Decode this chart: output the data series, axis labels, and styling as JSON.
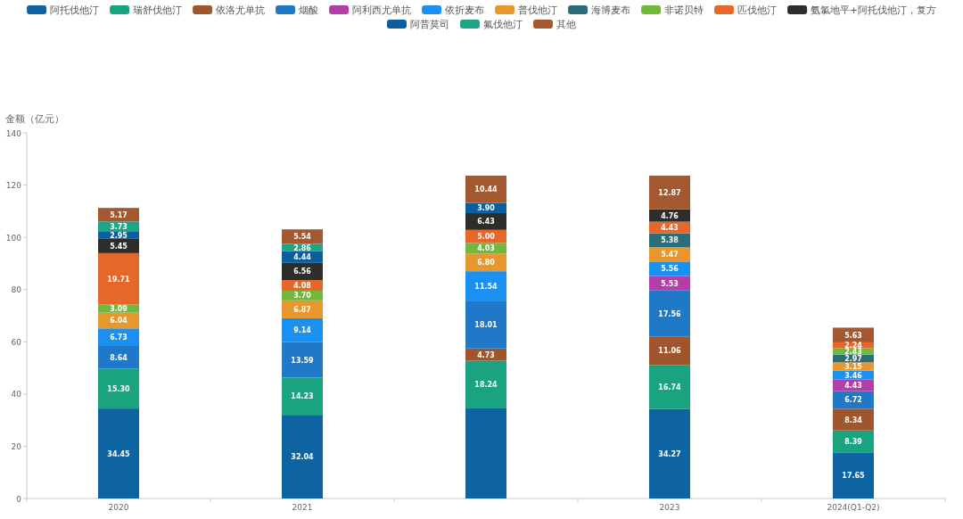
{
  "chart_data": {
    "type": "bar",
    "stacked": true,
    "ylabel": "金额（亿元）",
    "legend": "top",
    "grid": false,
    "categories": [
      "2020",
      "2021",
      null,
      "2023",
      "2024(Q1-Q2)"
    ],
    "ylim": [
      0,
      140
    ],
    "yticks": [
      0,
      20,
      40,
      60,
      80,
      100,
      120,
      140
    ],
    "series": [
      {
        "name": "阿托伐他汀",
        "color": "#0e64a0",
        "values": [
          34.45,
          32.04,
          34.5,
          34.27,
          17.65
        ],
        "value_labels": [
          "34.45",
          "32.04",
          null,
          "34.27",
          "17.65"
        ]
      },
      {
        "name": "瑞舒伐他汀",
        "color": "#1aa37f",
        "values": [
          15.3,
          14.23,
          18.24,
          16.74,
          8.39
        ],
        "value_labels": [
          "15.30",
          "14.23",
          "18.24",
          "16.74",
          "8.39"
        ]
      },
      {
        "name": "依洛尤单抗",
        "color": "#a0562d",
        "values": [
          null,
          null,
          4.73,
          11.06,
          8.34
        ],
        "value_labels": [
          null,
          null,
          "4.73",
          "11.06",
          "8.34"
        ]
      },
      {
        "name": "烟酸",
        "color": "#1f78c8",
        "values": [
          8.64,
          13.59,
          18.01,
          17.56,
          6.72
        ],
        "value_labels": [
          "8.64",
          "13.59",
          "18.01",
          "17.56",
          "6.72"
        ]
      },
      {
        "name": "阿利西尤单抗",
        "color": "#b23fa8",
        "values": [
          null,
          null,
          null,
          5.53,
          4.43
        ],
        "value_labels": [
          null,
          null,
          null,
          "5.53",
          "4.43"
        ]
      },
      {
        "name": "依折麦布",
        "color": "#1a90f0",
        "values": [
          6.73,
          9.14,
          11.54,
          5.56,
          3.46
        ],
        "value_labels": [
          "6.73",
          "9.14",
          "11.54",
          "5.56",
          "3.46"
        ]
      },
      {
        "name": "普伐他汀",
        "color": "#e8962e",
        "values": [
          6.04,
          6.87,
          6.8,
          5.47,
          3.15
        ],
        "value_labels": [
          "6.04",
          "6.87",
          "6.80",
          "5.47",
          "3.15"
        ]
      },
      {
        "name": "海博麦布",
        "color": "#2a6e7a",
        "values": [
          null,
          null,
          null,
          5.38,
          2.97
        ],
        "value_labels": [
          null,
          null,
          null,
          "5.38",
          "2.97"
        ]
      },
      {
        "name": "非诺贝特",
        "color": "#71b83c",
        "values": [
          3.09,
          3.7,
          4.03,
          null,
          2.43
        ],
        "value_labels": [
          "3.09",
          "3.70",
          "4.03",
          null,
          "2.43"
        ]
      },
      {
        "name": "匹伐他汀",
        "color": "#e5682a",
        "values": [
          19.71,
          4.08,
          5.0,
          4.43,
          2.24
        ],
        "value_labels": [
          "19.71",
          "4.08",
          "5.00",
          "4.43",
          "2.24"
        ]
      },
      {
        "name": "氨氯地平+阿托伐他汀，复方",
        "color": "#2d2d2a",
        "values": [
          5.45,
          6.56,
          6.43,
          4.76,
          null
        ],
        "value_labels": [
          "5.45",
          "6.56",
          "6.43",
          "4.76",
          null
        ]
      },
      {
        "name": "阿昔莫司",
        "color": "#0b5f9e",
        "values": [
          2.95,
          4.44,
          3.9,
          null,
          null
        ],
        "value_labels": [
          "2.95",
          "4.44",
          "3.90",
          null,
          null
        ]
      },
      {
        "name": "氟伐他汀",
        "color": "#1fa584",
        "values": [
          3.73,
          2.86,
          null,
          null,
          null
        ],
        "value_labels": [
          "3.73",
          "2.86",
          null,
          null,
          null
        ]
      },
      {
        "name": "其他",
        "color": "#a3582f",
        "values": [
          5.17,
          5.54,
          10.44,
          12.87,
          5.63
        ],
        "value_labels": [
          "5.17",
          "5.54",
          "10.44",
          "12.87",
          "5.63"
        ]
      }
    ]
  }
}
